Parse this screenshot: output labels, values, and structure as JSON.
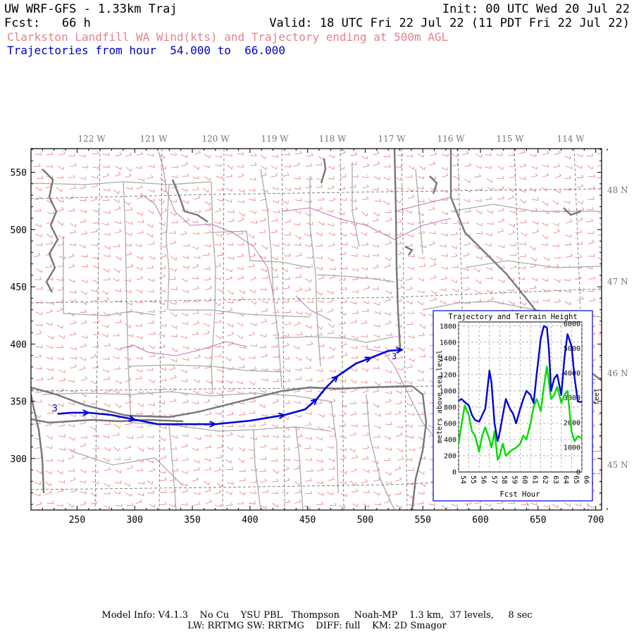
{
  "header": {
    "title": "UW WRF-GFS - 1.33km Traj",
    "init": "Init: 00 UTC Wed 20 Jul 22",
    "fcst": "Fcst:   66 h",
    "valid": "Valid: 18 UTC Fri 22 Jul 22 (11 PDT Fri 22 Jul 22)",
    "subtitle": "Clarkston Landfill WA Wind(kts) and Trajectory ending at 500m AGL",
    "traj_range": "Trajectories from hour  54.000 to  66.000"
  },
  "colors": {
    "wind_barb": "#ee8888",
    "trajectory": "#0000dd",
    "terrain": "#00dd00",
    "state_border": "#777777",
    "county_border": "#aaaaaa",
    "river": "#bb77bb",
    "header_pink": "#e8828a",
    "header_blue": "#0000cc"
  },
  "map": {
    "x_ticks": [
      "250",
      "300",
      "350",
      "400",
      "450",
      "500",
      "550",
      "600",
      "650",
      "700"
    ],
    "y_ticks": [
      "300",
      "350",
      "400",
      "450",
      "500",
      "550"
    ],
    "lon_labels": [
      "122 W",
      "121 W",
      "120 W",
      "119 W",
      "118 W",
      "117 W",
      "116 W",
      "115 W",
      "114 W"
    ],
    "lat_labels": [
      "48 N",
      "47 N",
      "46 N",
      "45 N"
    ],
    "trajectory_points": [
      {
        "x": 233,
        "y": 339
      },
      {
        "x": 245,
        "y": 340
      },
      {
        "x": 260,
        "y": 340
      },
      {
        "x": 280,
        "y": 338
      },
      {
        "x": 300,
        "y": 334
      },
      {
        "x": 320,
        "y": 330
      },
      {
        "x": 345,
        "y": 330
      },
      {
        "x": 370,
        "y": 330
      },
      {
        "x": 400,
        "y": 333
      },
      {
        "x": 430,
        "y": 338
      },
      {
        "x": 448,
        "y": 343
      },
      {
        "x": 458,
        "y": 352
      },
      {
        "x": 466,
        "y": 362
      },
      {
        "x": 476,
        "y": 372
      },
      {
        "x": 492,
        "y": 383
      },
      {
        "x": 505,
        "y": 388
      },
      {
        "x": 520,
        "y": 394
      },
      {
        "x": 532,
        "y": 395
      }
    ],
    "start_label": "3",
    "end_label": "3"
  },
  "inset": {
    "title": "Trajectory and Terrain Height",
    "ylabel_left": "meters above sea level",
    "ylabel_right": "feet",
    "xlabel": "Fcst Hour",
    "left_ticks": [
      "0",
      "200",
      "400",
      "600",
      "800",
      "1000",
      "1200",
      "1400",
      "1600",
      "1800"
    ],
    "right_ticks": [
      "0",
      "1000",
      "2000",
      "3000",
      "4000",
      "5000",
      "6000"
    ],
    "x_ticks": [
      "54",
      "55",
      "56",
      "57",
      "58",
      "59",
      "60",
      "61",
      "62",
      "63",
      "64",
      "65",
      "66"
    ]
  },
  "chart_data": {
    "type": "line",
    "title": "Trajectory and Terrain Height",
    "xlabel": "Fcst Hour",
    "ylabel": "meters above sea level",
    "y2label": "feet",
    "xlim": [
      54,
      66
    ],
    "ylim": [
      0,
      1850
    ],
    "grid": true,
    "series": [
      {
        "x": [
          54,
          54.3,
          54.6,
          55.0,
          55.3,
          55.6,
          56.0,
          56.3,
          56.6,
          57.0,
          57.2,
          57.5,
          57.8,
          58.0,
          58.3,
          58.6,
          59.0,
          59.3,
          59.6,
          60.0,
          60.3,
          60.6,
          61.0,
          61.3,
          61.6,
          62.0,
          62.3,
          62.6,
          62.8,
          63.0,
          63.3,
          63.6,
          64.0,
          64.3,
          64.6,
          65.0,
          65.3,
          65.6,
          66.0
        ],
        "y": [
          880,
          900,
          860,
          820,
          700,
          640,
          620,
          700,
          780,
          1250,
          1100,
          600,
          380,
          480,
          700,
          900,
          780,
          720,
          600,
          780,
          900,
          1000,
          950,
          850,
          1200,
          1650,
          1800,
          1780,
          1500,
          1000,
          1150,
          1200,
          950,
          1400,
          1700,
          1550,
          1150,
          870,
          860
        ]
      },
      {
        "x": [
          54,
          54.3,
          54.6,
          55.0,
          55.3,
          55.6,
          56.0,
          56.3,
          56.6,
          57.0,
          57.2,
          57.5,
          57.8,
          58.0,
          58.3,
          58.6,
          59.0,
          59.3,
          59.6,
          60.0,
          60.3,
          60.6,
          61.0,
          61.3,
          61.6,
          62.0,
          62.3,
          62.6,
          62.8,
          63.0,
          63.3,
          63.6,
          64.0,
          64.3,
          64.6,
          65.0,
          65.3,
          65.6,
          66.0
        ],
        "y": [
          350,
          600,
          820,
          700,
          500,
          450,
          250,
          450,
          550,
          400,
          300,
          500,
          150,
          200,
          350,
          200,
          250,
          280,
          300,
          350,
          450,
          400,
          600,
          800,
          900,
          750,
          1050,
          1300,
          1100,
          900,
          950,
          1050,
          850,
          950,
          1000,
          500,
          380,
          440,
          420
        ]
      }
    ]
  },
  "footer": {
    "line1": "Model Info: V4.1.3    No Cu    YSU PBL   Thompson     Noah-MP    1.3 km,  37 levels,     8 sec",
    "line2": "LW: RRTMG SW: RRTMG    DIFF: full    KM: 2D Smagor"
  }
}
